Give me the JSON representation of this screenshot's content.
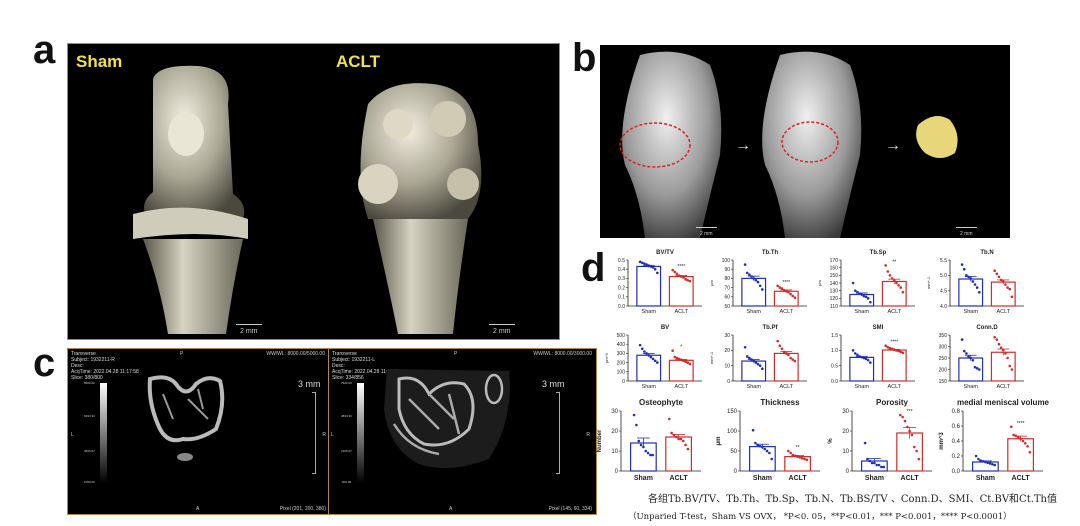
{
  "panel_labels": {
    "a": "a",
    "b": "b",
    "c": "c",
    "d": "d"
  },
  "panel_a": {
    "left_group": "Sham",
    "right_group": "ACLT",
    "scale_left": "2 mm",
    "scale_right": "2 mm",
    "group_color": "#f2e24a"
  },
  "panel_b": {
    "scale_1": "2 mm",
    "scale_2": "2 mm",
    "arrow": "→",
    "outline_color": "#e02020",
    "segment_color": "#e8d77a"
  },
  "panel_c": {
    "left": {
      "meta": "Transverse\nSubject: 1932211-R\nDesc:\nAcqTime: 2022.04.28 11:17:58\nSlice: 380/800",
      "top": "P",
      "wwwl": "WW/WL: 8000.00/5000.00",
      "scale": "3 mm",
      "side_left": "L",
      "side_right": "R",
      "bottom": "A",
      "pixel": "Pixel (201, 200, 380)",
      "cbar": [
        "8000.00",
        "6333.33",
        "3666.67",
        "1000.00"
      ]
    },
    "right": {
      "meta": "Transverse\nSubject: 1932211-L\nDesc:\nAcqTime: 2022.04.28 11:46:51\nSlice: 334/856",
      "top": "P",
      "wwwl": "WW/WL: 8000.00/3000.00",
      "scale": "3 mm",
      "side_left": "L",
      "side_right": "R",
      "bottom": "A",
      "pixel": "Pixel (145, 60, 334)",
      "cbar": [
        "7500.00",
        "4833.33",
        "2166.67",
        "-500.00"
      ]
    }
  },
  "caption": {
    "line1": "各组Tb.BV/TV、Tb.Th、Tb.Sp、Tb.N、Tb.BS/TV 、Conn.D、SMI、Ct.BV和Ct.Th值",
    "line2": "（Unparied T-test，Sham VS OVX，  *P<0. 05，**P<0.01，*** P<0.001，**** P<0.0001）"
  },
  "colors": {
    "sham": "#1f2fb5",
    "aclt": "#d42a2a"
  },
  "chart_data": [
    {
      "type": "bar",
      "title": "BV/TV",
      "ylabel": "",
      "ylim": [
        0,
        0.5
      ],
      "ticks": [
        "0.0",
        "0.1",
        "0.2",
        "0.3",
        "0.4",
        "0.5"
      ],
      "categories": [
        "Sham",
        "ACLT"
      ],
      "values": [
        0.43,
        0.32
      ],
      "sem": [
        0.012,
        0.012
      ],
      "points": [
        [
          0.48,
          0.47,
          0.46,
          0.45,
          0.44,
          0.43,
          0.42,
          0.4,
          0.36
        ],
        [
          0.39,
          0.37,
          0.35,
          0.33,
          0.32,
          0.31,
          0.29,
          0.28,
          0.27
        ]
      ],
      "significance": "****"
    },
    {
      "type": "bar",
      "title": "Tb.Th",
      "ylabel": "μm",
      "ylim": [
        50,
        100
      ],
      "ticks": [
        "50",
        "60",
        "70",
        "80",
        "90",
        "100"
      ],
      "categories": [
        "Sham",
        "ACLT"
      ],
      "values": [
        80,
        66
      ],
      "sem": [
        2.5,
        1.5
      ],
      "points": [
        [
          95,
          86,
          84,
          82,
          80,
          78,
          76,
          72,
          68
        ],
        [
          72,
          70,
          69,
          67,
          66,
          65,
          63,
          61,
          59
        ]
      ],
      "significance": "****"
    },
    {
      "type": "bar",
      "title": "Tb.Sp",
      "ylabel": "μm",
      "ylim": [
        110,
        170
      ],
      "ticks": [
        "110",
        "120",
        "130",
        "140",
        "150",
        "160",
        "170"
      ],
      "categories": [
        "Sham",
        "ACLT"
      ],
      "values": [
        125,
        142
      ],
      "sem": [
        2,
        3
      ],
      "points": [
        [
          140,
          130,
          128,
          126,
          125,
          123,
          122,
          120,
          115
        ],
        [
          163,
          155,
          150,
          146,
          143,
          140,
          137,
          134,
          128
        ]
      ],
      "significance": "**"
    },
    {
      "type": "bar",
      "title": "Tb.N",
      "ylabel": "mm^-1",
      "ylim": [
        4.0,
        5.5
      ],
      "ticks": [
        "4.0",
        "4.5",
        "5.0",
        "5.5"
      ],
      "categories": [
        "Sham",
        "ACLT"
      ],
      "values": [
        4.88,
        4.78
      ],
      "sem": [
        0.08,
        0.07
      ],
      "points": [
        [
          5.35,
          5.2,
          5.0,
          4.95,
          4.9,
          4.8,
          4.7,
          4.6,
          4.45
        ],
        [
          5.15,
          5.05,
          4.95,
          4.85,
          4.8,
          4.7,
          4.6,
          4.55,
          4.3
        ]
      ],
      "significance": ""
    },
    {
      "type": "bar",
      "title": "BV",
      "ylabel": "μm^3",
      "ylim": [
        0,
        500
      ],
      "ticks": [
        "0",
        "100",
        "200",
        "300",
        "400",
        "500"
      ],
      "categories": [
        "Sham",
        "ACLT"
      ],
      "values": [
        280,
        225
      ],
      "sem": [
        18,
        10
      ],
      "points": [
        [
          390,
          350,
          320,
          300,
          280,
          260,
          240,
          220,
          200
        ],
        [
          330,
          260,
          250,
          240,
          230,
          220,
          210,
          200,
          185
        ]
      ],
      "significance": "*"
    },
    {
      "type": "bar",
      "title": "Tb.Pf",
      "ylabel": "mm^-1",
      "ylim": [
        0,
        30
      ],
      "ticks": [
        "0",
        "10",
        "20",
        "30"
      ],
      "categories": [
        "Sham",
        "ACLT"
      ],
      "values": [
        13,
        18
      ],
      "sem": [
        1,
        1.2
      ],
      "points": [
        [
          22,
          16,
          15,
          14,
          13,
          12,
          11,
          10,
          8
        ],
        [
          26,
          23,
          21,
          19,
          18,
          17,
          15,
          14,
          13
        ]
      ],
      "significance": ""
    },
    {
      "type": "bar",
      "title": "SMI",
      "ylabel": "",
      "ylim": [
        0,
        1.5
      ],
      "ticks": [
        "0.0",
        "0.5",
        "1.0",
        "1.5"
      ],
      "categories": [
        "Sham",
        "ACLT"
      ],
      "values": [
        0.77,
        1.01
      ],
      "sem": [
        0.03,
        0.02
      ],
      "points": [
        [
          1.0,
          0.9,
          0.85,
          0.8,
          0.78,
          0.75,
          0.72,
          0.68,
          0.6
        ],
        [
          1.15,
          1.1,
          1.07,
          1.05,
          1.02,
          1.0,
          0.98,
          0.95,
          0.92
        ]
      ],
      "significance": "****"
    },
    {
      "type": "bar",
      "title": "Conn.D",
      "ylabel": "",
      "ylim": [
        150,
        350
      ],
      "ticks": [
        "150",
        "200",
        "250",
        "300",
        "350"
      ],
      "categories": [
        "Sham",
        "ACLT"
      ],
      "values": [
        250,
        275
      ],
      "sem": [
        12,
        14
      ],
      "points": [
        [
          330,
          280,
          270,
          255,
          250,
          240,
          210,
          205,
          200
        ],
        [
          340,
          330,
          310,
          295,
          285,
          270,
          250,
          215,
          200
        ]
      ],
      "significance": ""
    },
    {
      "type": "bar",
      "title": "Osteophyte",
      "ylabel": "Number",
      "ylim": [
        0,
        30
      ],
      "ticks": [
        "0",
        "10",
        "20",
        "30"
      ],
      "categories": [
        "Sham",
        "ACLT"
      ],
      "values": [
        14,
        17
      ],
      "sem": [
        2.5,
        1.2
      ],
      "points": [
        [
          28,
          23,
          15,
          13,
          12,
          10,
          9,
          8,
          8
        ],
        [
          26,
          19,
          18,
          17,
          16,
          16,
          15,
          13,
          11
        ]
      ],
      "significance": ""
    },
    {
      "type": "bar",
      "title": "Thickness",
      "ylabel": "μm",
      "ylim": [
        0,
        150
      ],
      "ticks": [
        "0",
        "50",
        "100",
        "150"
      ],
      "categories": [
        "Sham",
        "ACLT"
      ],
      "values": [
        61,
        36
      ],
      "sem": [
        6,
        3
      ],
      "points": [
        [
          102,
          70,
          65,
          62,
          60,
          55,
          50,
          45,
          30
        ],
        [
          50,
          45,
          40,
          38,
          36,
          34,
          32,
          30,
          28
        ]
      ],
      "significance": "**"
    },
    {
      "type": "bar",
      "title": "Porosity",
      "ylabel": "%",
      "ylim": [
        0,
        30
      ],
      "ticks": [
        "0",
        "10",
        "20",
        "30"
      ],
      "categories": [
        "Sham",
        "ACLT"
      ],
      "values": [
        5,
        19
      ],
      "sem": [
        1.2,
        2.8
      ],
      "points": [
        [
          14,
          6,
          5,
          4,
          4,
          3,
          3,
          2,
          2
        ],
        [
          28,
          27,
          25,
          22,
          20,
          18,
          12,
          10,
          6
        ]
      ],
      "significance": "***"
    },
    {
      "type": "bar",
      "title": "medial meniscal volume",
      "ylabel": "mm^3",
      "ylim": [
        0,
        0.8
      ],
      "ticks": [
        "0.0",
        "0.2",
        "0.4",
        "0.6",
        "0.8"
      ],
      "categories": [
        "Sham",
        "ACLT"
      ],
      "values": [
        0.12,
        0.43
      ],
      "sem": [
        0.015,
        0.035
      ],
      "points": [
        [
          0.2,
          0.16,
          0.14,
          0.13,
          0.12,
          0.11,
          0.1,
          0.09,
          0.08
        ],
        [
          0.59,
          0.48,
          0.47,
          0.45,
          0.43,
          0.4,
          0.37,
          0.33,
          0.25
        ]
      ],
      "significance": "****"
    }
  ]
}
